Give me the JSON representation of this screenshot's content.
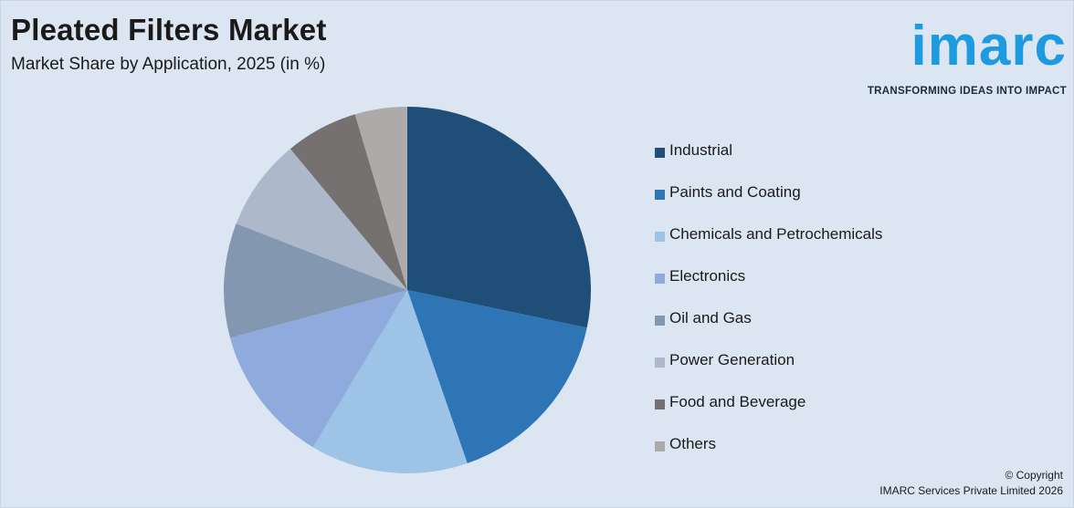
{
  "header": {
    "title": "Pleated Filters Market",
    "subtitle": "Market Share by Application, 2025 (in %)"
  },
  "logo": {
    "word": "imarc",
    "tagline": "TRANSFORMING IDEAS INTO IMPACT",
    "color": "#1e9be0"
  },
  "chart_data": {
    "type": "pie",
    "title": "Pleated Filters Market",
    "subtitle": "Market Share by Application, 2025 (in %)",
    "legend_position": "right",
    "categories": [
      "Industrial",
      "Paints and Coating",
      "Chemicals and Petrochemicals",
      "Electronics",
      "Oil and Gas",
      "Power Generation",
      "Food and Beverage",
      "Others"
    ],
    "values": [
      28.3,
      16.4,
      13.9,
      12.2,
      10.1,
      8.1,
      6.4,
      4.6
    ],
    "colors": [
      "#1f4e79",
      "#2e75b6",
      "#9dc3e6",
      "#8faadc",
      "#8497b0",
      "#adb9ca",
      "#767171",
      "#aeaaaa"
    ]
  },
  "footer": {
    "copyright_line1": "© Copyright",
    "copyright_line2": "IMARC Services Private Limited 2026"
  }
}
